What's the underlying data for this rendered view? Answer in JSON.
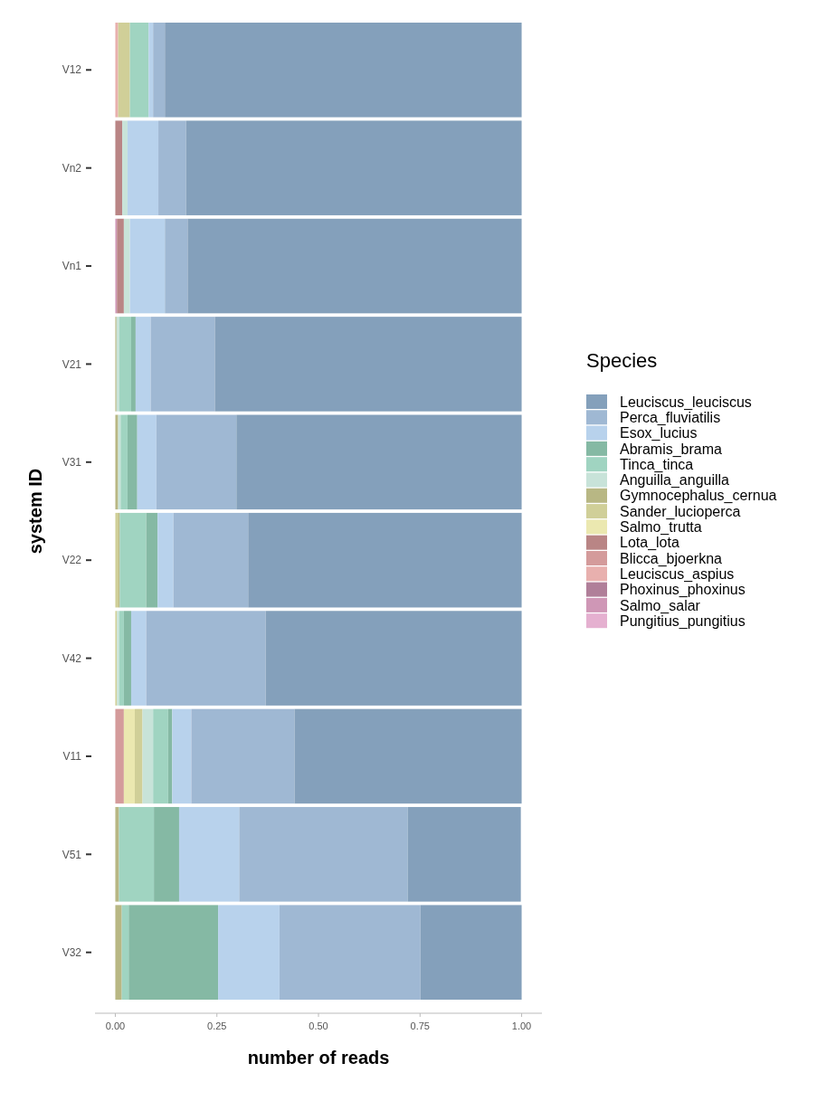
{
  "chart_data": {
    "type": "bar",
    "orientation": "horizontal",
    "stacked": true,
    "xlabel": "number of reads",
    "ylabel": "system ID",
    "legend_title": "Species",
    "legend": "right",
    "grid": false,
    "categories": [
      "V12",
      "Vn2",
      "Vn1",
      "V21",
      "V31",
      "V22",
      "V42",
      "V11",
      "V51",
      "V32"
    ],
    "xlim": [
      -0.05,
      1.05
    ],
    "xticks": [
      {
        "value": 0,
        "label": "0.00"
      },
      {
        "value": 0.25,
        "label": "0.25"
      },
      {
        "value": 0.5,
        "label": "0.50"
      },
      {
        "value": 0.75,
        "label": "0.75"
      },
      {
        "value": 1,
        "label": "1.00"
      }
    ],
    "series": [
      {
        "name": "Pungitius_pungitius",
        "color": "#e5b0d0",
        "values": [
          null,
          null,
          null,
          null,
          null,
          null,
          null,
          null,
          null,
          null
        ]
      },
      {
        "name": "Salmo_salar",
        "color": "#cf97b6",
        "values": [
          null,
          null,
          0.004,
          null,
          null,
          null,
          null,
          null,
          null,
          null
        ]
      },
      {
        "name": "Phoxinus_phoxinus",
        "color": "#b07f99",
        "values": [
          null,
          null,
          null,
          null,
          null,
          null,
          null,
          null,
          null,
          null
        ]
      },
      {
        "name": "Leuciscus_aspius",
        "color": "#e8b0ae",
        "values": [
          0.007,
          null,
          null,
          null,
          null,
          null,
          null,
          null,
          null,
          null
        ]
      },
      {
        "name": "Blicca_bjoerkna",
        "color": "#d49b9b",
        "values": [
          null,
          null,
          null,
          null,
          null,
          null,
          null,
          0.021,
          null,
          null
        ]
      },
      {
        "name": "Lota_lota",
        "color": "#b98585",
        "values": [
          null,
          0.017,
          0.017,
          null,
          null,
          null,
          null,
          null,
          null,
          null
        ]
      },
      {
        "name": "Salmo_trutta",
        "color": "#ebe8b0",
        "values": [
          null,
          null,
          null,
          null,
          null,
          null,
          null,
          0.027,
          null,
          null
        ]
      },
      {
        "name": "Sander_lucioperca",
        "color": "#d0cf98",
        "values": [
          0.029,
          null,
          null,
          null,
          null,
          0.008,
          0.004,
          0.019,
          null,
          null
        ]
      },
      {
        "name": "Gymnocephalus_cernua",
        "color": "#b8b784",
        "values": [
          null,
          null,
          null,
          0.003,
          0.007,
          0.003,
          null,
          null,
          0.009,
          0.016
        ]
      },
      {
        "name": "Anguilla_anguilla",
        "color": "#c8e3d9",
        "values": [
          null,
          0.013,
          0.015,
          0.007,
          0.006,
          null,
          0.006,
          0.026,
          null,
          null
        ]
      },
      {
        "name": "Tinca_tinca",
        "color": "#a0d4c1",
        "values": [
          0.046,
          null,
          null,
          0.029,
          0.017,
          0.065,
          0.011,
          0.037,
          0.086,
          0.017
        ]
      },
      {
        "name": "Abramis_brama",
        "color": "#85b9a4",
        "values": [
          null,
          null,
          null,
          0.011,
          0.024,
          0.028,
          0.018,
          0.01,
          0.062,
          0.22
        ]
      },
      {
        "name": "Esox_lucius",
        "color": "#b8d2ec",
        "values": [
          0.011,
          0.076,
          0.086,
          0.037,
          0.047,
          0.039,
          0.037,
          0.047,
          0.148,
          0.151
        ]
      },
      {
        "name": "Perca_fluviatilis",
        "color": "#9fb8d3",
        "values": [
          0.029,
          0.068,
          0.056,
          0.158,
          0.197,
          0.184,
          0.294,
          0.254,
          0.415,
          0.347
        ]
      },
      {
        "name": "Leuciscus_leuciscus",
        "color": "#84a0bb",
        "values": [
          0.878,
          0.826,
          0.822,
          0.755,
          0.702,
          0.673,
          0.63,
          0.559,
          0.278,
          0.249
        ]
      }
    ]
  }
}
